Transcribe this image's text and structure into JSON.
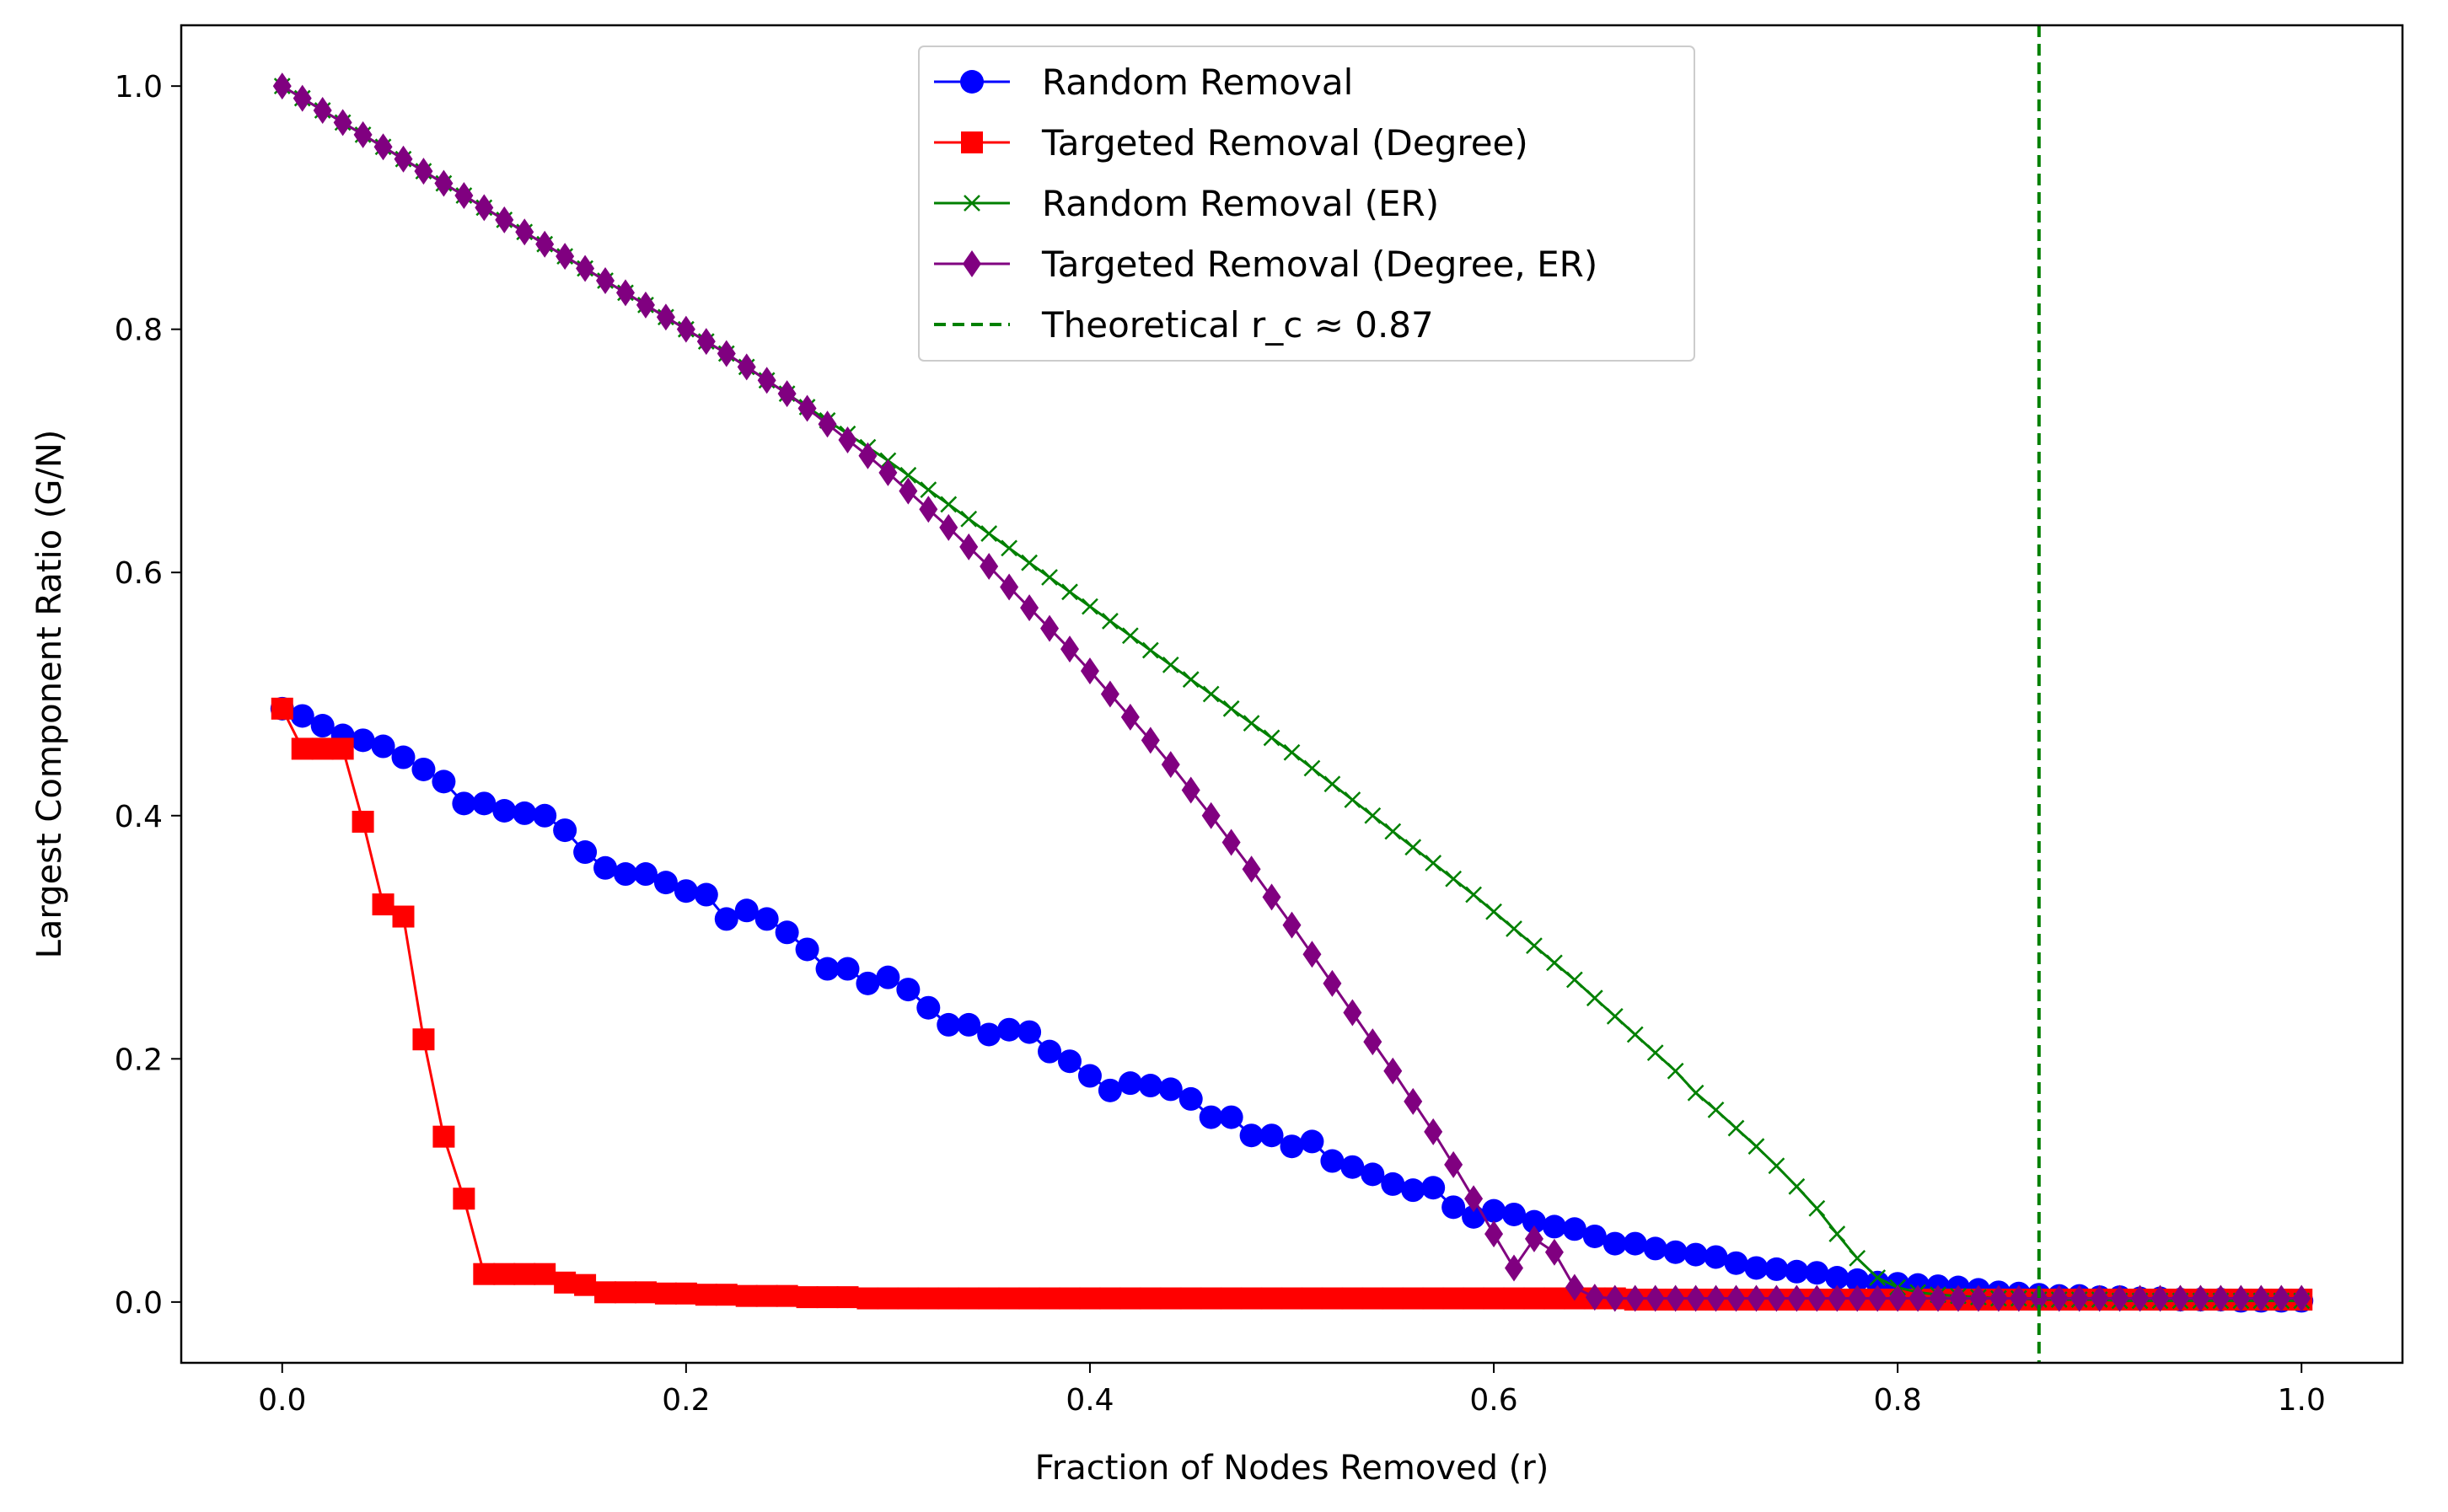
{
  "chart_data": {
    "type": "line",
    "title": "",
    "xlabel": "Fraction of Nodes Removed (r)",
    "ylabel": "Largest Component Ratio (G/N)",
    "xlim": [
      -0.05,
      1.05
    ],
    "ylim": [
      -0.05,
      1.05
    ],
    "xticks": [
      0.0,
      0.2,
      0.4,
      0.6,
      0.8,
      1.0
    ],
    "yticks": [
      0.0,
      0.2,
      0.4,
      0.6,
      0.8,
      1.0
    ],
    "xtick_labels": [
      "0.0",
      "0.2",
      "0.4",
      "0.6",
      "0.8",
      "1.0"
    ],
    "ytick_labels": [
      "0.0",
      "0.2",
      "0.4",
      "0.6",
      "0.8",
      "1.0"
    ],
    "grid": false,
    "legend_position": "top-center",
    "series": [
      {
        "name": "Random Removal",
        "color": "#0000ff",
        "marker": "circle",
        "x": [
          0.0,
          0.01,
          0.02,
          0.03,
          0.04,
          0.05,
          0.06,
          0.07,
          0.08,
          0.09,
          0.1,
          0.11,
          0.12,
          0.13,
          0.14,
          0.15,
          0.16,
          0.17,
          0.18,
          0.19,
          0.2,
          0.21,
          0.22,
          0.23,
          0.24,
          0.25,
          0.26,
          0.27,
          0.28,
          0.29,
          0.3,
          0.31,
          0.32,
          0.33,
          0.34,
          0.35,
          0.36,
          0.37,
          0.38,
          0.39,
          0.4,
          0.41,
          0.42,
          0.43,
          0.44,
          0.45,
          0.46,
          0.47,
          0.48,
          0.49,
          0.5,
          0.51,
          0.52,
          0.53,
          0.54,
          0.55,
          0.56,
          0.57,
          0.58,
          0.59,
          0.6,
          0.61,
          0.62,
          0.63,
          0.64,
          0.65,
          0.66,
          0.67,
          0.68,
          0.69,
          0.7,
          0.71,
          0.72,
          0.73,
          0.74,
          0.75,
          0.76,
          0.77,
          0.78,
          0.79,
          0.8,
          0.81,
          0.82,
          0.83,
          0.84,
          0.85,
          0.86,
          0.87,
          0.88,
          0.89,
          0.9,
          0.91,
          0.92,
          0.93,
          0.94,
          0.95,
          0.96,
          0.97,
          0.98,
          0.99,
          1.0
        ],
        "y": [
          0.488,
          0.482,
          0.474,
          0.466,
          0.462,
          0.457,
          0.448,
          0.438,
          0.428,
          0.41,
          0.41,
          0.404,
          0.402,
          0.4,
          0.388,
          0.37,
          0.357,
          0.352,
          0.352,
          0.345,
          0.338,
          0.335,
          0.315,
          0.322,
          0.315,
          0.304,
          0.29,
          0.274,
          0.274,
          0.262,
          0.267,
          0.257,
          0.242,
          0.228,
          0.228,
          0.22,
          0.224,
          0.222,
          0.206,
          0.198,
          0.186,
          0.174,
          0.18,
          0.178,
          0.175,
          0.167,
          0.152,
          0.152,
          0.137,
          0.137,
          0.128,
          0.132,
          0.116,
          0.111,
          0.105,
          0.097,
          0.092,
          0.094,
          0.078,
          0.07,
          0.075,
          0.072,
          0.066,
          0.062,
          0.06,
          0.054,
          0.048,
          0.048,
          0.044,
          0.041,
          0.039,
          0.037,
          0.032,
          0.028,
          0.027,
          0.025,
          0.024,
          0.02,
          0.018,
          0.016,
          0.015,
          0.014,
          0.013,
          0.012,
          0.01,
          0.008,
          0.007,
          0.006,
          0.005,
          0.005,
          0.004,
          0.004,
          0.003,
          0.003,
          0.002,
          0.002,
          0.002,
          0.001,
          0.001,
          0.001,
          0.001
        ]
      },
      {
        "name": "Targeted Removal (Degree)",
        "color": "#ff0000",
        "marker": "square",
        "x": [
          0.0,
          0.01,
          0.02,
          0.03,
          0.04,
          0.05,
          0.06,
          0.07,
          0.08,
          0.09,
          0.1,
          0.11,
          0.12,
          0.13,
          0.14,
          0.15,
          0.16,
          0.17,
          0.18,
          0.19,
          0.2,
          0.21,
          0.22,
          0.23,
          0.24,
          0.25,
          0.26,
          0.27,
          0.28,
          0.29,
          0.3,
          0.31,
          0.32,
          0.33,
          0.34,
          0.35,
          0.36,
          0.37,
          0.38,
          0.39,
          0.4,
          0.41,
          0.42,
          0.43,
          0.44,
          0.45,
          0.46,
          0.47,
          0.48,
          0.49,
          0.5,
          0.51,
          0.52,
          0.53,
          0.54,
          0.55,
          0.56,
          0.57,
          0.58,
          0.59,
          0.6,
          0.61,
          0.62,
          0.63,
          0.64,
          0.65,
          0.66,
          0.67,
          0.68,
          0.69,
          0.7,
          0.71,
          0.72,
          0.73,
          0.74,
          0.75,
          0.76,
          0.77,
          0.78,
          0.79,
          0.8,
          0.81,
          0.82,
          0.83,
          0.84,
          0.85,
          0.86,
          0.87,
          0.88,
          0.89,
          0.9,
          0.91,
          0.92,
          0.93,
          0.94,
          0.95,
          0.96,
          0.97,
          0.98,
          0.99,
          1.0
        ],
        "y": [
          0.488,
          0.455,
          0.455,
          0.455,
          0.395,
          0.327,
          0.317,
          0.216,
          0.136,
          0.085,
          0.023,
          0.023,
          0.023,
          0.023,
          0.016,
          0.014,
          0.008,
          0.008,
          0.008,
          0.007,
          0.007,
          0.006,
          0.006,
          0.005,
          0.005,
          0.005,
          0.004,
          0.004,
          0.004,
          0.003,
          0.003,
          0.003,
          0.003,
          0.003,
          0.003,
          0.003,
          0.003,
          0.003,
          0.003,
          0.003,
          0.003,
          0.003,
          0.003,
          0.003,
          0.003,
          0.003,
          0.003,
          0.003,
          0.003,
          0.003,
          0.003,
          0.003,
          0.003,
          0.003,
          0.003,
          0.003,
          0.003,
          0.003,
          0.003,
          0.003,
          0.003,
          0.003,
          0.003,
          0.003,
          0.003,
          0.003,
          0.003,
          0.002,
          0.002,
          0.002,
          0.002,
          0.002,
          0.002,
          0.002,
          0.002,
          0.002,
          0.002,
          0.002,
          0.002,
          0.002,
          0.002,
          0.002,
          0.002,
          0.002,
          0.002,
          0.002,
          0.002,
          0.002,
          0.002,
          0.002,
          0.002,
          0.002,
          0.002,
          0.002,
          0.002,
          0.002,
          0.002,
          0.002,
          0.002,
          0.002,
          0.002
        ]
      },
      {
        "name": "Random Removal (ER)",
        "color": "#008000",
        "marker": "x",
        "x": [
          0.0,
          0.01,
          0.02,
          0.03,
          0.04,
          0.05,
          0.06,
          0.07,
          0.08,
          0.09,
          0.1,
          0.11,
          0.12,
          0.13,
          0.14,
          0.15,
          0.16,
          0.17,
          0.18,
          0.19,
          0.2,
          0.21,
          0.22,
          0.23,
          0.24,
          0.25,
          0.26,
          0.27,
          0.28,
          0.29,
          0.3,
          0.31,
          0.32,
          0.33,
          0.34,
          0.35,
          0.36,
          0.37,
          0.38,
          0.39,
          0.4,
          0.41,
          0.42,
          0.43,
          0.44,
          0.45,
          0.46,
          0.47,
          0.48,
          0.49,
          0.5,
          0.51,
          0.52,
          0.53,
          0.54,
          0.55,
          0.56,
          0.57,
          0.58,
          0.59,
          0.6,
          0.61,
          0.62,
          0.63,
          0.64,
          0.65,
          0.66,
          0.67,
          0.68,
          0.69,
          0.7,
          0.71,
          0.72,
          0.73,
          0.74,
          0.75,
          0.76,
          0.77,
          0.78,
          0.79,
          0.8,
          0.81,
          0.82,
          0.83,
          0.84,
          0.85,
          0.86,
          0.87,
          0.88,
          0.89,
          0.9,
          0.91,
          0.92,
          0.93,
          0.94,
          0.95,
          0.96,
          0.97,
          0.98,
          0.99,
          1.0
        ],
        "y": [
          1.0,
          0.99,
          0.98,
          0.97,
          0.96,
          0.95,
          0.94,
          0.93,
          0.92,
          0.91,
          0.9,
          0.89,
          0.88,
          0.87,
          0.86,
          0.85,
          0.84,
          0.83,
          0.82,
          0.81,
          0.8,
          0.79,
          0.78,
          0.769,
          0.758,
          0.747,
          0.736,
          0.725,
          0.714,
          0.703,
          0.692,
          0.68,
          0.668,
          0.656,
          0.644,
          0.632,
          0.62,
          0.608,
          0.596,
          0.584,
          0.572,
          0.56,
          0.548,
          0.536,
          0.524,
          0.512,
          0.5,
          0.488,
          0.476,
          0.464,
          0.452,
          0.439,
          0.426,
          0.413,
          0.4,
          0.387,
          0.374,
          0.361,
          0.348,
          0.335,
          0.321,
          0.307,
          0.293,
          0.279,
          0.265,
          0.25,
          0.235,
          0.22,
          0.205,
          0.19,
          0.172,
          0.158,
          0.143,
          0.128,
          0.112,
          0.095,
          0.077,
          0.056,
          0.036,
          0.02,
          0.012,
          0.008,
          0.006,
          0.005,
          0.004,
          0.003,
          0.003,
          0.002,
          0.002,
          0.002,
          0.002,
          0.001,
          0.001,
          0.001,
          0.001,
          0.001,
          0.001,
          0.001,
          0.001,
          0.001,
          0.001
        ]
      },
      {
        "name": "Targeted Removal (Degree, ER)",
        "color": "#800080",
        "marker": "diamond",
        "x": [
          0.0,
          0.01,
          0.02,
          0.03,
          0.04,
          0.05,
          0.06,
          0.07,
          0.08,
          0.09,
          0.1,
          0.11,
          0.12,
          0.13,
          0.14,
          0.15,
          0.16,
          0.17,
          0.18,
          0.19,
          0.2,
          0.21,
          0.22,
          0.23,
          0.24,
          0.25,
          0.26,
          0.27,
          0.28,
          0.29,
          0.3,
          0.31,
          0.32,
          0.33,
          0.34,
          0.35,
          0.36,
          0.37,
          0.38,
          0.39,
          0.4,
          0.41,
          0.42,
          0.43,
          0.44,
          0.45,
          0.46,
          0.47,
          0.48,
          0.49,
          0.5,
          0.51,
          0.52,
          0.53,
          0.54,
          0.55,
          0.56,
          0.57,
          0.58,
          0.59,
          0.6,
          0.61,
          0.62,
          0.63,
          0.64,
          0.65,
          0.66,
          0.67,
          0.68,
          0.69,
          0.7,
          0.71,
          0.72,
          0.73,
          0.74,
          0.75,
          0.76,
          0.77,
          0.78,
          0.79,
          0.8,
          0.81,
          0.82,
          0.83,
          0.84,
          0.85,
          0.86,
          0.87,
          0.88,
          0.89,
          0.9,
          0.91,
          0.92,
          0.93,
          0.94,
          0.95,
          0.96,
          0.97,
          0.98,
          0.99,
          1.0
        ],
        "y": [
          1.0,
          0.99,
          0.98,
          0.97,
          0.96,
          0.95,
          0.94,
          0.93,
          0.92,
          0.91,
          0.9,
          0.89,
          0.88,
          0.87,
          0.86,
          0.85,
          0.84,
          0.83,
          0.82,
          0.81,
          0.8,
          0.79,
          0.78,
          0.769,
          0.758,
          0.747,
          0.735,
          0.722,
          0.709,
          0.696,
          0.682,
          0.667,
          0.652,
          0.637,
          0.621,
          0.605,
          0.588,
          0.571,
          0.554,
          0.537,
          0.519,
          0.5,
          0.481,
          0.462,
          0.442,
          0.421,
          0.4,
          0.378,
          0.356,
          0.333,
          0.31,
          0.286,
          0.262,
          0.238,
          0.214,
          0.19,
          0.165,
          0.14,
          0.113,
          0.085,
          0.056,
          0.028,
          0.052,
          0.041,
          0.012,
          0.004,
          0.003,
          0.003,
          0.003,
          0.003,
          0.003,
          0.003,
          0.003,
          0.003,
          0.003,
          0.003,
          0.003,
          0.003,
          0.003,
          0.003,
          0.003,
          0.003,
          0.003,
          0.003,
          0.003,
          0.003,
          0.003,
          0.003,
          0.003,
          0.003,
          0.003,
          0.003,
          0.003,
          0.003,
          0.003,
          0.003,
          0.003,
          0.003,
          0.003,
          0.003,
          0.003
        ]
      },
      {
        "name": "Theoretical r_c ≈ 0.87",
        "color": "#008000",
        "style": "dashed-vertical",
        "x_value": 0.87
      }
    ]
  }
}
